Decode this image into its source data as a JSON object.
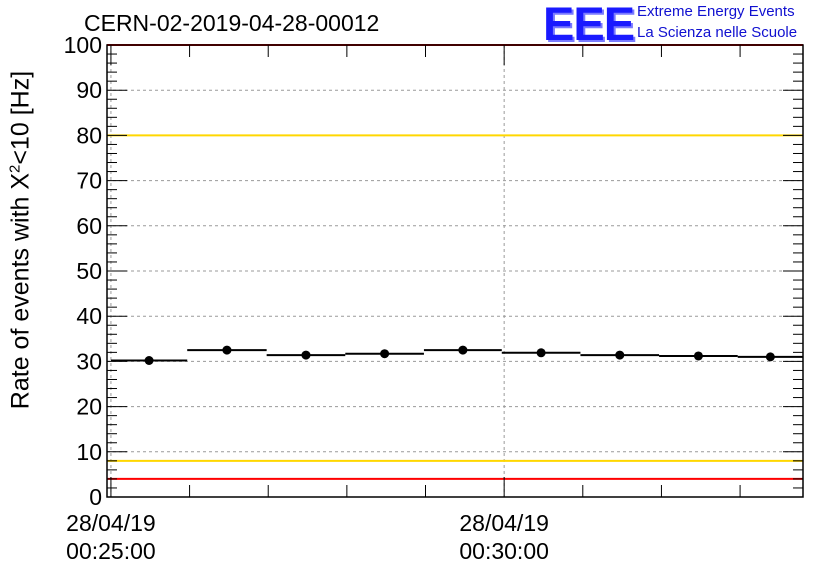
{
  "header": {
    "title": "CERN-02-2019-04-28-00012",
    "logo_mark": "EEE",
    "logo_line1": "Extreme Energy Events",
    "logo_line2": "La Scienza nelle Scuole"
  },
  "chart_data": {
    "type": "scatter",
    "title": "CERN-02-2019-04-28-00012",
    "ylabel_prefix": "Rate of events with X",
    "ylabel_sup": "2",
    "ylabel_suffix": "<10 [Hz]",
    "xlabel": "",
    "ylim": [
      0,
      100
    ],
    "y_ticks": [
      0,
      10,
      20,
      30,
      40,
      50,
      60,
      70,
      80,
      90,
      100
    ],
    "x_ticks": [
      {
        "minute": 25,
        "date": "28/04/19",
        "time": "00:25:00"
      },
      {
        "minute": 30,
        "date": "28/04/19",
        "time": "00:30:00"
      }
    ],
    "xlim_minutes": [
      24.95,
      33.8
    ],
    "grid": true,
    "reference_lines": [
      {
        "y": 100,
        "color": "#ff0000"
      },
      {
        "y": 80,
        "color": "#ffd700"
      },
      {
        "y": 8,
        "color": "#ffd700"
      },
      {
        "y": 4,
        "color": "#ff0000"
      }
    ],
    "points": [
      {
        "x_start": 25.0,
        "x_end": 25.97,
        "y": 30.2
      },
      {
        "x_start": 25.97,
        "x_end": 26.98,
        "y": 32.5
      },
      {
        "x_start": 26.98,
        "x_end": 27.98,
        "y": 31.4
      },
      {
        "x_start": 27.98,
        "x_end": 28.98,
        "y": 31.7
      },
      {
        "x_start": 28.98,
        "x_end": 29.97,
        "y": 32.5
      },
      {
        "x_start": 29.97,
        "x_end": 30.97,
        "y": 31.9
      },
      {
        "x_start": 30.97,
        "x_end": 31.97,
        "y": 31.4
      },
      {
        "x_start": 31.97,
        "x_end": 32.97,
        "y": 31.2
      },
      {
        "x_start": 32.97,
        "x_end": 33.8,
        "y": 31.0
      }
    ],
    "marker_color": "#000000"
  }
}
